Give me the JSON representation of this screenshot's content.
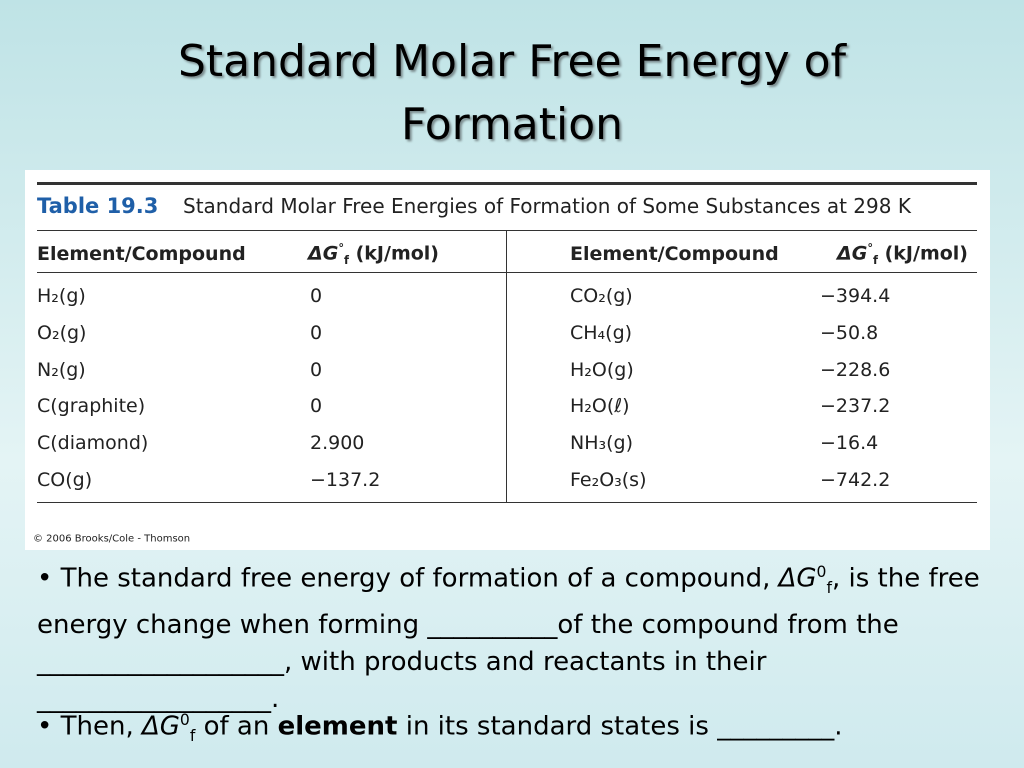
{
  "title": [
    "Standard Molar Free Energy of",
    "Formation"
  ],
  "table": {
    "label": "Table 19.3",
    "caption": "Standard Molar Free Energies of Formation of Some Substances at 298 K",
    "headers": {
      "compound": "Element/Compound",
      "symbol": "ΔG",
      "sup": "°",
      "sub": "f",
      "unit": "(kJ/mol)"
    },
    "rows": [
      [
        "H₂(g)",
        "0",
        "CO₂(g)",
        "−394.4"
      ],
      [
        "O₂(g)",
        "0",
        "CH₄(g)",
        "−50.8"
      ],
      [
        "N₂(g)",
        "0",
        "H₂O(g)",
        "−228.6"
      ],
      [
        "C(graphite)",
        "0",
        "H₂O(ℓ)",
        "−237.2"
      ],
      [
        "C(diamond)",
        "2.900",
        "NH₃(g)",
        "−16.4"
      ],
      [
        "CO(g)",
        "−137.2",
        "Fe₂O₃(s)",
        "−742.2"
      ]
    ],
    "credit": "© 2006 Brooks/Cole - Thomson"
  },
  "bullets": [
    [
      "The standard free energy of formation of a compound, ",
      "ΔG",
      "0",
      "f",
      ", is the free energy change when forming ",
      "__________",
      "of the compound from the ",
      "___________________",
      ", with products and reactants in their ",
      "__________________",
      "."
    ],
    [
      "Then, ",
      "ΔG",
      "0",
      "f",
      " of an ",
      "element",
      " in its standard states is ",
      "_________",
      "."
    ]
  ]
}
